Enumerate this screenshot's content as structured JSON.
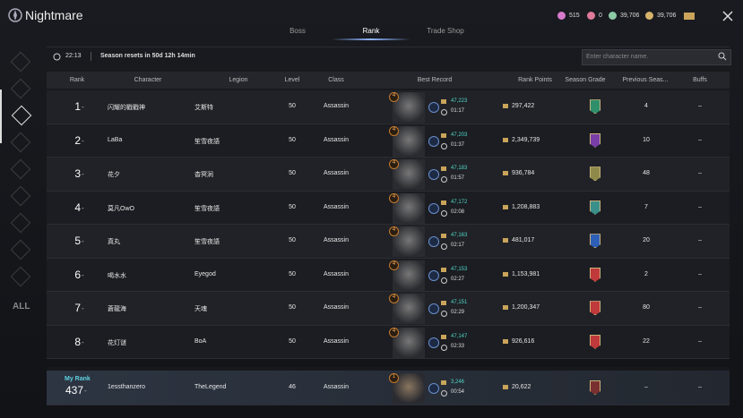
{
  "header": {
    "title": "Nightmare",
    "currencies": [
      "515",
      "0",
      "39,706",
      "39,706"
    ]
  },
  "tabs": [
    "Boss",
    "Rank",
    "Trade Shop"
  ],
  "season": {
    "time": "22:13",
    "reset": "Season resets in 50d 12h 14min"
  },
  "search": {
    "placeholder": "Enter character name."
  },
  "sidebar": {
    "all": "ALL"
  },
  "table": {
    "columns": [
      "Rank",
      "Character",
      "Legion",
      "Level",
      "Class",
      "Best Record",
      "Rank Points",
      "Season Grade",
      "Previous Seas...",
      "Buffs"
    ],
    "rows": [
      {
        "rank": "1",
        "change": "-",
        "character": "闪耀的戳戳神",
        "legion": "艾斯特",
        "level": "50",
        "class": "Assassin",
        "badge": "4",
        "score": "47,223",
        "time": "01:17",
        "points": "297,422",
        "previous": "4",
        "buffs": "–"
      },
      {
        "rank": "2",
        "change": "-",
        "character": "LaBa",
        "legion": "笙雪夜語",
        "level": "50",
        "class": "Assassin",
        "badge": "4",
        "score": "47,203",
        "time": "01:37",
        "points": "2,349,739",
        "previous": "10",
        "buffs": "–"
      },
      {
        "rank": "3",
        "change": "-",
        "character": "花夕",
        "legion": "杳冥涧",
        "level": "50",
        "class": "Assassin",
        "badge": "4",
        "score": "47,183",
        "time": "01:57",
        "points": "936,784",
        "previous": "48",
        "buffs": "–"
      },
      {
        "rank": "4",
        "change": "-",
        "character": "莫凡OwO",
        "legion": "笙雪夜語",
        "level": "50",
        "class": "Assassin",
        "badge": "4",
        "score": "47,172",
        "time": "02:08",
        "points": "1,208,883",
        "previous": "7",
        "buffs": "–"
      },
      {
        "rank": "5",
        "change": "-",
        "character": "真丸",
        "legion": "笙雪夜語",
        "level": "50",
        "class": "Assassin",
        "badge": "4",
        "score": "47,163",
        "time": "02:17",
        "points": "481,017",
        "previous": "20",
        "buffs": "–"
      },
      {
        "rank": "6",
        "change": "-",
        "character": "喝水水",
        "legion": "Eyegod",
        "level": "50",
        "class": "Assassin",
        "badge": "4",
        "score": "47,153",
        "time": "02:27",
        "points": "1,153,981",
        "previous": "2",
        "buffs": "–"
      },
      {
        "rank": "7",
        "change": "-",
        "character": "蒼龍海",
        "legion": "天魂",
        "level": "50",
        "class": "Assassin",
        "badge": "4",
        "score": "47,151",
        "time": "02:29",
        "points": "1,200,347",
        "previous": "80",
        "buffs": "–"
      },
      {
        "rank": "8",
        "change": "-",
        "character": "花灯谜",
        "legion": "BoA",
        "level": "50",
        "class": "Assassin",
        "badge": "4",
        "score": "47,147",
        "time": "02:33",
        "points": "926,616",
        "previous": "22",
        "buffs": "–"
      }
    ]
  },
  "my_rank": {
    "label": "My Rank",
    "rank": "437",
    "change": "-",
    "character": "1essthanzero",
    "legion": "TheLegend",
    "level": "46",
    "class": "Assassin",
    "badge": "1",
    "score": "3,246",
    "time": "00:54",
    "points": "20,622",
    "previous": "–",
    "buffs": "–"
  }
}
